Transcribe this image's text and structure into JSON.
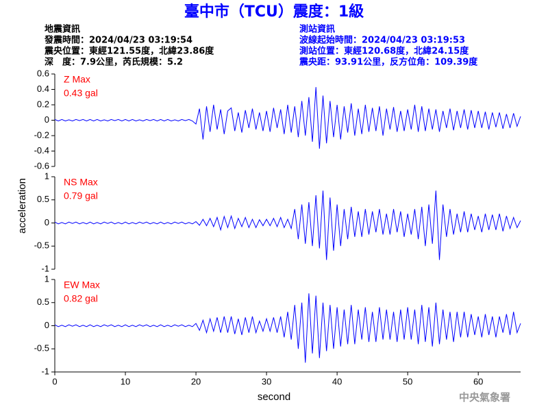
{
  "title": "臺中市（TCU）震度：1級",
  "event_info": [
    "地震資訊",
    "發震時間：2024/04/23 03:19:54",
    "震央位置：東經121.55度，北緯23.86度",
    "深　度：7.9公里，芮氏規模：5.2"
  ],
  "station_info": [
    "測站資訊",
    "波線起始時間：2024/04/23 03:19:53",
    "測站位置：東經120.68度，北緯24.15度",
    "震央距：93.91公里，反方位角：109.39度"
  ],
  "footer": "中央氣象署",
  "chart_data": [
    {
      "type": "line",
      "label": "Z Max",
      "max_label": "0.43 gal",
      "color": "#0000ff",
      "label_color": "#ff0000",
      "xlim": [
        0,
        66
      ],
      "ylim": [
        -0.6,
        0.6
      ],
      "yticks": [
        0.6,
        0.4,
        0.2,
        0,
        -0.2,
        -0.4,
        -0.6
      ],
      "x": [
        0,
        0.5,
        1,
        1.5,
        2,
        2.5,
        3,
        3.5,
        4,
        4.5,
        5,
        5.5,
        6,
        6.5,
        7,
        7.5,
        8,
        8.5,
        9,
        9.5,
        10,
        10.5,
        11,
        11.5,
        12,
        12.5,
        13,
        13.5,
        14,
        14.5,
        15,
        15.5,
        16,
        16.5,
        17,
        17.5,
        18,
        18.5,
        19,
        19.5,
        20,
        20.5,
        21,
        21.5,
        22,
        22.5,
        23,
        23.5,
        24,
        24.5,
        25,
        25.5,
        26,
        26.5,
        27,
        27.5,
        28,
        28.5,
        29,
        29.5,
        30,
        30.5,
        31,
        31.5,
        32,
        32.5,
        33,
        33.5,
        34,
        34.5,
        35,
        35.5,
        36,
        36.5,
        37,
        37.5,
        38,
        38.5,
        39,
        39.5,
        40,
        40.5,
        41,
        41.5,
        42,
        42.5,
        43,
        43.5,
        44,
        44.5,
        45,
        45.5,
        46,
        46.5,
        47,
        47.5,
        48,
        48.5,
        49,
        49.5,
        50,
        50.5,
        51,
        51.5,
        52,
        52.5,
        53,
        53.5,
        54,
        54.5,
        55,
        55.5,
        56,
        56.5,
        57,
        57.5,
        58,
        58.5,
        59,
        59.5,
        60,
        60.5,
        61,
        61.5,
        62,
        62.5,
        63,
        63.5,
        64,
        64.5,
        65,
        65.5,
        66
      ],
      "values": [
        0.01,
        -0.01,
        0.01,
        -0.01,
        0.005,
        -0.01,
        0.01,
        -0.005,
        0.01,
        -0.01,
        0.01,
        -0.01,
        0.01,
        -0.01,
        0.005,
        -0.01,
        0.01,
        -0.005,
        0.01,
        -0.01,
        0.01,
        -0.01,
        0.01,
        -0.01,
        0.005,
        -0.01,
        0.01,
        -0.005,
        0.01,
        -0.01,
        0.01,
        -0.01,
        0.01,
        -0.01,
        0.005,
        -0.01,
        0.01,
        -0.005,
        0.01,
        -0.01,
        -0.05,
        0.15,
        -0.25,
        0.18,
        -0.15,
        0.2,
        -0.12,
        0.14,
        -0.18,
        0.12,
        0.16,
        -0.14,
        0.1,
        -0.16,
        0.13,
        -0.1,
        0.15,
        -0.12,
        0.1,
        -0.14,
        0.12,
        -0.15,
        0.16,
        -0.1,
        0.14,
        -0.18,
        0.2,
        -0.16,
        0.18,
        -0.22,
        0.25,
        -0.2,
        0.3,
        -0.28,
        0.43,
        -0.37,
        0.32,
        -0.3,
        0.25,
        -0.22,
        0.2,
        -0.25,
        0.18,
        -0.16,
        0.22,
        -0.2,
        0.15,
        -0.18,
        0.2,
        -0.15,
        0.16,
        -0.14,
        0.18,
        -0.2,
        0.15,
        -0.12,
        0.17,
        -0.15,
        0.12,
        -0.14,
        0.14,
        -0.12,
        0.2,
        -0.15,
        0.18,
        -0.14,
        0.15,
        -0.12,
        0.14,
        -0.15,
        0.12,
        -0.1,
        0.15,
        -0.13,
        0.12,
        -0.1,
        0.14,
        -0.12,
        0.13,
        -0.1,
        0.12,
        -0.1,
        0.11,
        -0.12,
        0.1,
        -0.09,
        0.1,
        -0.11,
        0.08,
        -0.1,
        0.09,
        -0.08,
        0.05
      ]
    },
    {
      "type": "line",
      "label": "NS Max",
      "max_label": "0.79 gal",
      "color": "#0000ff",
      "label_color": "#ff0000",
      "ylabel": "acceleration",
      "xlim": [
        0,
        66
      ],
      "ylim": [
        -1,
        1
      ],
      "yticks": [
        1,
        0.5,
        0,
        -0.5,
        -1
      ],
      "x": [
        0,
        0.5,
        1,
        1.5,
        2,
        2.5,
        3,
        3.5,
        4,
        4.5,
        5,
        5.5,
        6,
        6.5,
        7,
        7.5,
        8,
        8.5,
        9,
        9.5,
        10,
        10.5,
        11,
        11.5,
        12,
        12.5,
        13,
        13.5,
        14,
        14.5,
        15,
        15.5,
        16,
        16.5,
        17,
        17.5,
        18,
        18.5,
        19,
        19.5,
        20,
        20.5,
        21,
        21.5,
        22,
        22.5,
        23,
        23.5,
        24,
        24.5,
        25,
        25.5,
        26,
        26.5,
        27,
        27.5,
        28,
        28.5,
        29,
        29.5,
        30,
        30.5,
        31,
        31.5,
        32,
        32.5,
        33,
        33.5,
        34,
        34.5,
        35,
        35.5,
        36,
        36.5,
        37,
        37.5,
        38,
        38.5,
        39,
        39.5,
        40,
        40.5,
        41,
        41.5,
        42,
        42.5,
        43,
        43.5,
        44,
        44.5,
        45,
        45.5,
        46,
        46.5,
        47,
        47.5,
        48,
        48.5,
        49,
        49.5,
        50,
        50.5,
        51,
        51.5,
        52,
        52.5,
        53,
        53.5,
        54,
        54.5,
        55,
        55.5,
        56,
        56.5,
        57,
        57.5,
        58,
        58.5,
        59,
        59.5,
        60,
        60.5,
        61,
        61.5,
        62,
        62.5,
        63,
        63.5,
        64,
        64.5,
        65,
        65.5,
        66
      ],
      "values": [
        0.02,
        -0.02,
        0.01,
        -0.02,
        0.02,
        -0.01,
        0.02,
        -0.02,
        0.01,
        -0.02,
        0.02,
        -0.02,
        0.01,
        -0.02,
        0.02,
        -0.01,
        0.02,
        -0.02,
        0.01,
        -0.02,
        0.02,
        -0.02,
        0.01,
        -0.02,
        0.02,
        -0.01,
        0.02,
        -0.02,
        0.01,
        -0.02,
        0.02,
        -0.02,
        0.01,
        -0.02,
        0.02,
        -0.01,
        0.02,
        -0.02,
        0.01,
        -0.02,
        0.03,
        -0.05,
        0.08,
        -0.06,
        0.1,
        -0.08,
        0.12,
        -0.15,
        0.14,
        -0.1,
        0.15,
        -0.12,
        0.1,
        -0.08,
        0.12,
        -0.1,
        0.08,
        -0.1,
        0.07,
        -0.06,
        0.08,
        -0.06,
        0.1,
        -0.08,
        0.12,
        -0.1,
        0.08,
        -0.12,
        0.3,
        -0.35,
        0.4,
        -0.45,
        0.45,
        -0.5,
        0.6,
        -0.55,
        0.7,
        -0.8,
        0.55,
        -0.6,
        0.4,
        -0.5,
        0.3,
        -0.35,
        0.35,
        -0.3,
        0.25,
        -0.3,
        0.3,
        -0.25,
        0.25,
        -0.2,
        0.3,
        -0.25,
        0.2,
        -0.25,
        0.3,
        -0.2,
        0.25,
        -0.3,
        0.2,
        -0.25,
        0.3,
        -0.35,
        0.35,
        -0.5,
        0.4,
        -0.45,
        0.7,
        -0.8,
        0.4,
        -0.3,
        0.3,
        -0.25,
        0.2,
        -0.2,
        0.25,
        -0.2,
        0.2,
        -0.15,
        0.15,
        -0.2,
        0.2,
        -0.15,
        0.18,
        -0.15,
        0.2,
        -0.18,
        0.15,
        -0.12,
        0.12,
        -0.1,
        0.05
      ]
    },
    {
      "type": "line",
      "label": "EW Max",
      "max_label": "0.82 gal",
      "color": "#0000ff",
      "label_color": "#ff0000",
      "xlabel": "second",
      "xlim": [
        0,
        66
      ],
      "ylim": [
        -1,
        1
      ],
      "yticks": [
        1,
        0.5,
        0,
        -0.5,
        -1
      ],
      "xticks": [
        0,
        10,
        20,
        30,
        40,
        50,
        60
      ],
      "x": [
        0,
        0.5,
        1,
        1.5,
        2,
        2.5,
        3,
        3.5,
        4,
        4.5,
        5,
        5.5,
        6,
        6.5,
        7,
        7.5,
        8,
        8.5,
        9,
        9.5,
        10,
        10.5,
        11,
        11.5,
        12,
        12.5,
        13,
        13.5,
        14,
        14.5,
        15,
        15.5,
        16,
        16.5,
        17,
        17.5,
        18,
        18.5,
        19,
        19.5,
        20,
        20.5,
        21,
        21.5,
        22,
        22.5,
        23,
        23.5,
        24,
        24.5,
        25,
        25.5,
        26,
        26.5,
        27,
        27.5,
        28,
        28.5,
        29,
        29.5,
        30,
        30.5,
        31,
        31.5,
        32,
        32.5,
        33,
        33.5,
        34,
        34.5,
        35,
        35.5,
        36,
        36.5,
        37,
        37.5,
        38,
        38.5,
        39,
        39.5,
        40,
        40.5,
        41,
        41.5,
        42,
        42.5,
        43,
        43.5,
        44,
        44.5,
        45,
        45.5,
        46,
        46.5,
        47,
        47.5,
        48,
        48.5,
        49,
        49.5,
        50,
        50.5,
        51,
        51.5,
        52,
        52.5,
        53,
        53.5,
        54,
        54.5,
        55,
        55.5,
        56,
        56.5,
        57,
        57.5,
        58,
        58.5,
        59,
        59.5,
        60,
        60.5,
        61,
        61.5,
        62,
        62.5,
        63,
        63.5,
        64,
        64.5,
        65,
        65.5,
        66
      ],
      "values": [
        0.02,
        -0.02,
        0.01,
        -0.02,
        0.02,
        -0.01,
        0.02,
        -0.02,
        0.01,
        -0.02,
        0.02,
        -0.02,
        0.01,
        -0.02,
        0.02,
        -0.01,
        0.02,
        -0.02,
        0.01,
        -0.02,
        0.02,
        -0.02,
        0.01,
        -0.02,
        0.02,
        -0.01,
        0.02,
        -0.02,
        0.01,
        -0.02,
        0.02,
        -0.02,
        0.01,
        -0.02,
        0.02,
        -0.01,
        0.02,
        -0.02,
        0.01,
        -0.02,
        0.05,
        -0.1,
        0.12,
        -0.15,
        0.15,
        -0.12,
        0.18,
        -0.15,
        0.2,
        -0.15,
        0.2,
        -0.18,
        0.15,
        -0.2,
        0.18,
        -0.15,
        0.2,
        -0.15,
        0.1,
        -0.12,
        0.15,
        -0.12,
        0.18,
        -0.15,
        0.2,
        -0.25,
        0.3,
        -0.3,
        0.45,
        -0.5,
        0.5,
        -0.8,
        0.7,
        -0.6,
        0.65,
        -0.7,
        0.5,
        -0.55,
        0.45,
        -0.5,
        0.4,
        -0.45,
        0.35,
        -0.4,
        0.45,
        -0.4,
        0.35,
        -0.3,
        0.4,
        -0.35,
        0.3,
        -0.35,
        0.4,
        -0.3,
        0.35,
        -0.3,
        0.3,
        -0.35,
        0.35,
        -0.3,
        0.4,
        -0.3,
        0.35,
        -0.4,
        0.45,
        -0.35,
        0.4,
        -0.45,
        0.5,
        -0.4,
        0.35,
        -0.3,
        0.3,
        -0.35,
        0.3,
        -0.25,
        0.3,
        -0.25,
        0.25,
        -0.2,
        0.2,
        -0.25,
        0.25,
        -0.2,
        0.2,
        -0.25,
        0.2,
        -0.15,
        0.25,
        -0.2,
        0.3,
        -0.15,
        0.05
      ]
    }
  ]
}
